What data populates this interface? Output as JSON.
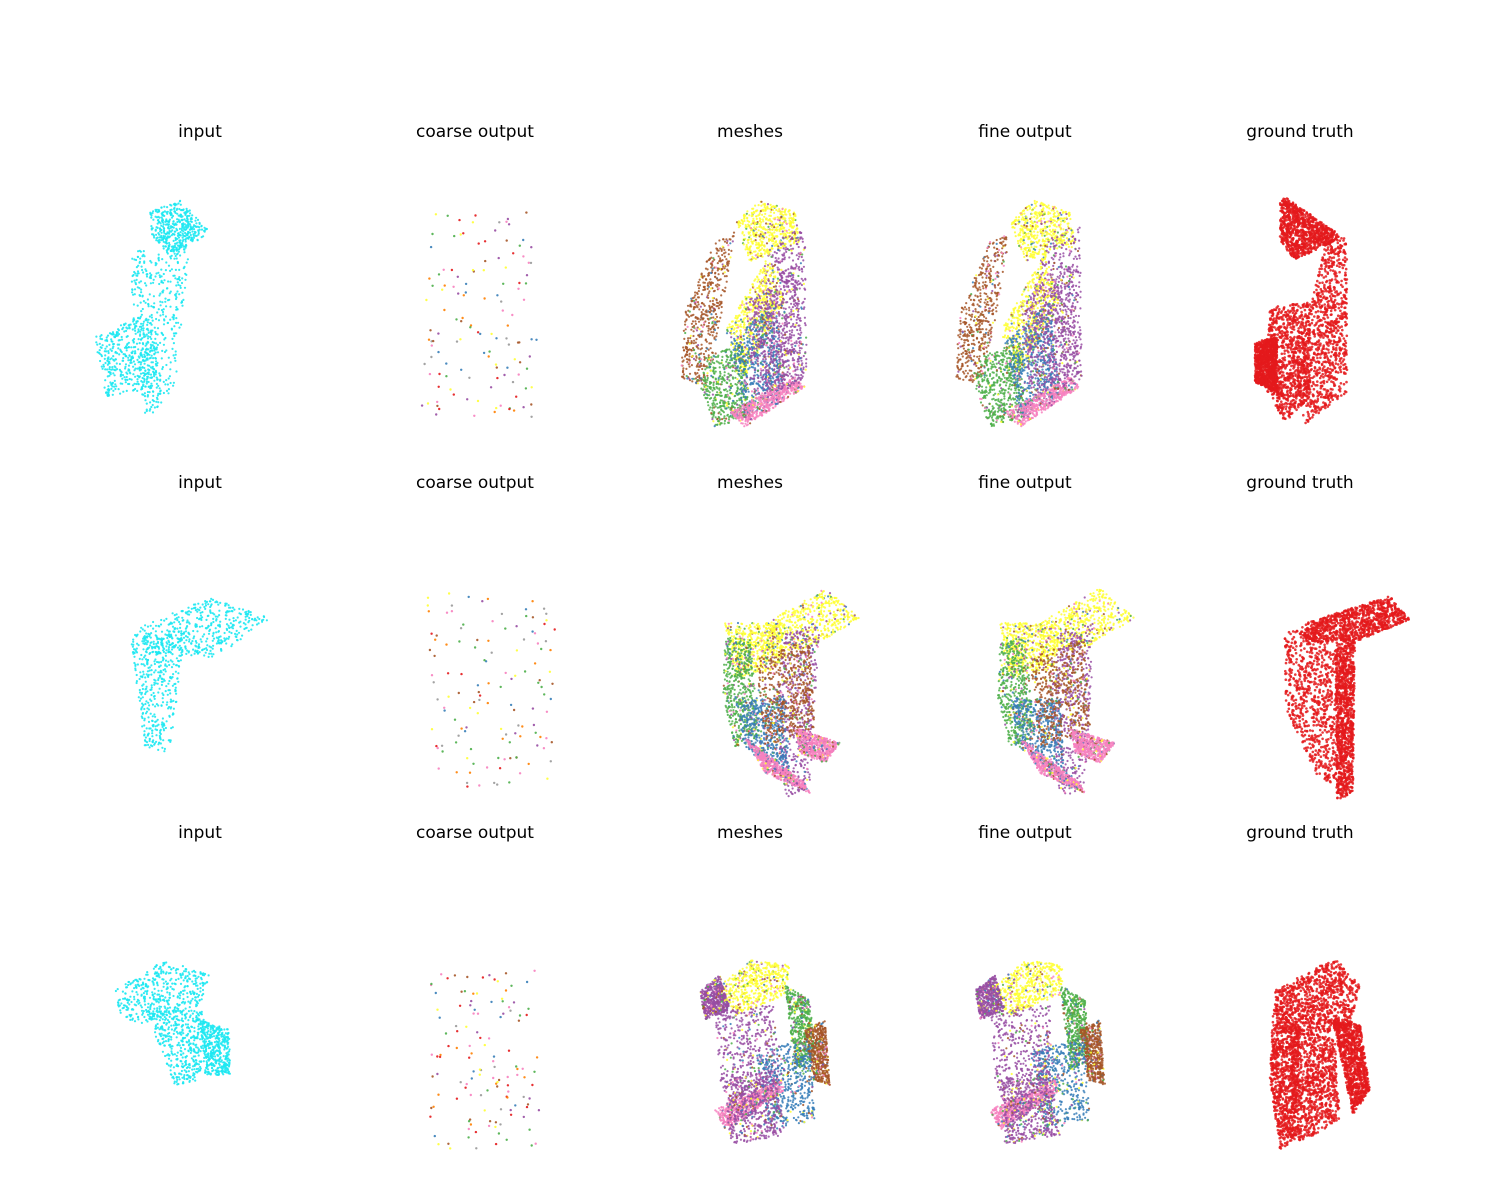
{
  "figure": {
    "panel_titles": [
      "input",
      "coarse output",
      "meshes",
      "fine output",
      "ground truth"
    ],
    "rows": [
      {
        "panels": [
          {
            "title": "input",
            "kind": "input",
            "shape": "cabinet-angled"
          },
          {
            "title": "coarse output",
            "kind": "coarse",
            "shape": "cabinet-angled"
          },
          {
            "title": "meshes",
            "kind": "meshes",
            "shape": "cabinet-angled"
          },
          {
            "title": "fine output",
            "kind": "fine",
            "shape": "cabinet-angled"
          },
          {
            "title": "ground truth",
            "kind": "gt",
            "shape": "cabinet-angled"
          }
        ]
      },
      {
        "panels": [
          {
            "title": "input",
            "kind": "input",
            "shape": "cabinet-flap"
          },
          {
            "title": "coarse output",
            "kind": "coarse",
            "shape": "cabinet-flap"
          },
          {
            "title": "meshes",
            "kind": "meshes",
            "shape": "cabinet-flap"
          },
          {
            "title": "fine output",
            "kind": "fine",
            "shape": "cabinet-flap"
          },
          {
            "title": "ground truth",
            "kind": "gt",
            "shape": "cabinet-flap"
          }
        ]
      },
      {
        "panels": [
          {
            "title": "input",
            "kind": "input",
            "shape": "cabinet-top"
          },
          {
            "title": "coarse output",
            "kind": "coarse",
            "shape": "cabinet-top"
          },
          {
            "title": "meshes",
            "kind": "meshes",
            "shape": "cabinet-top"
          },
          {
            "title": "fine output",
            "kind": "fine",
            "shape": "cabinet-top"
          },
          {
            "title": "ground truth",
            "kind": "gt",
            "shape": "cabinet-top"
          }
        ]
      }
    ],
    "colors": {
      "input": "#1ee8f2",
      "ground_truth": "#e41a1c",
      "mesh_palette": [
        "#984ea3",
        "#ffff33",
        "#a65628",
        "#4daf4a",
        "#377eb8",
        "#f781bf",
        "#999999",
        "#ff7f00",
        "#e41a1c"
      ]
    }
  }
}
